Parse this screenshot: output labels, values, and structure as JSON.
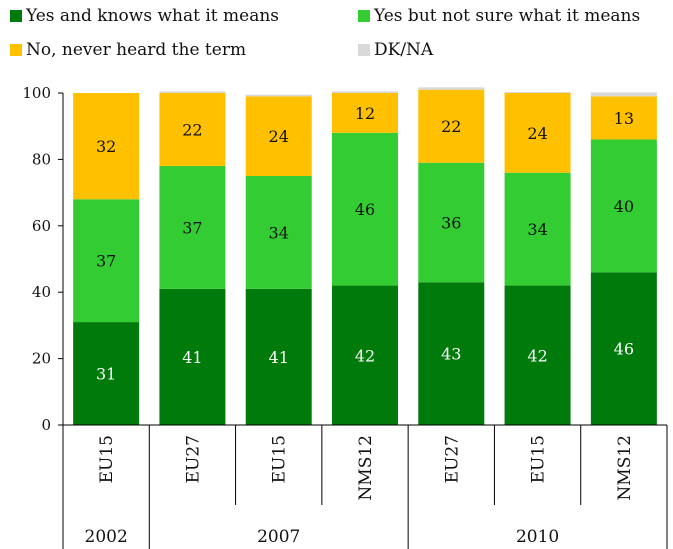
{
  "chart_data": {
    "type": "bar",
    "stacked": true,
    "categories": [
      "EU15",
      "EU27",
      "EU15",
      "NMS12",
      "EU27",
      "EU15",
      "NMS12"
    ],
    "groups": [
      {
        "label": "2002",
        "span": 1
      },
      {
        "label": "2007",
        "span": 3
      },
      {
        "label": "2010",
        "span": 3
      }
    ],
    "series": [
      {
        "name": "Yes and knows what it means",
        "color": "#007a0a",
        "values": [
          31,
          41,
          41,
          42,
          43,
          42,
          46
        ],
        "label_color": "#ffffff"
      },
      {
        "name": "Yes but not sure what it means",
        "color": "#33cc33",
        "values": [
          37,
          37,
          34,
          46,
          36,
          34,
          40
        ],
        "label_color": "#111111"
      },
      {
        "name": "No, never heard the term",
        "color": "#ffc000",
        "values": [
          32,
          22,
          24,
          12,
          22,
          24,
          13
        ],
        "label_color": "#111111"
      },
      {
        "name": "DK/NA",
        "color": "#d9d9d9",
        "values": [
          0,
          0.5,
          0.5,
          0.5,
          0.7,
          0.3,
          1.2
        ],
        "show_labels": false
      }
    ],
    "yticks": [
      0,
      20,
      40,
      60,
      80,
      100
    ],
    "ylim": [
      0,
      100
    ],
    "legend_position": "top",
    "grid": false
  }
}
